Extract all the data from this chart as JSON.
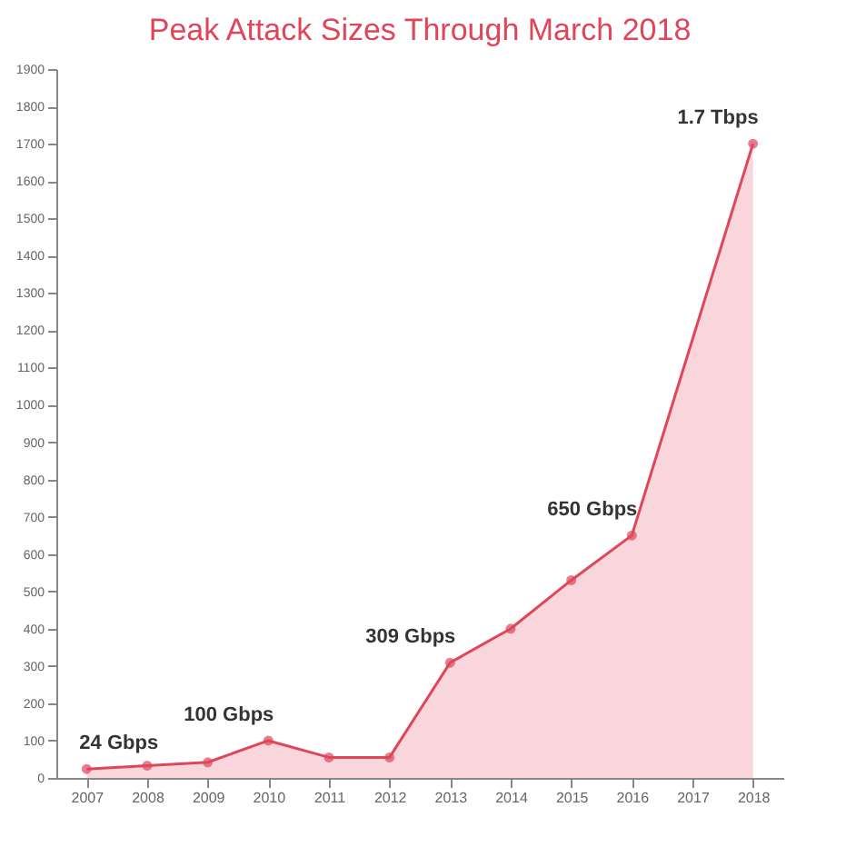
{
  "chart_data": {
    "type": "area",
    "title": "Peak Attack Sizes Through March 2018",
    "categories": [
      "2007",
      "2008",
      "2009",
      "2010",
      "2011",
      "2012",
      "2013",
      "2014",
      "2015",
      "2016",
      "2017",
      "2018"
    ],
    "series": [
      {
        "color": "#e0465a",
        "values": [
          24,
          33,
          42,
          100,
          55,
          55,
          309,
          400,
          530,
          650,
          null,
          1700
        ]
      }
    ],
    "ylim": [
      0,
      1900
    ],
    "yticks": [
      0,
      100,
      200,
      300,
      400,
      500,
      600,
      700,
      800,
      900,
      1000,
      1100,
      1200,
      1300,
      1400,
      1500,
      1600,
      1700,
      1800,
      1900
    ],
    "grid": false,
    "marker": "circle",
    "line_style": "solid",
    "annotations": [
      {
        "text": "24 Gbps",
        "x": "2007",
        "y": 24
      },
      {
        "text": "100 Gbps",
        "x": "2010",
        "y": 100
      },
      {
        "text": "309 Gbps",
        "x": "2013",
        "y": 309
      },
      {
        "text": "650 Gbps",
        "x": "2016",
        "y": 650
      },
      {
        "text": "1.7 Tbps",
        "x": "2018",
        "y": 1700
      }
    ]
  }
}
